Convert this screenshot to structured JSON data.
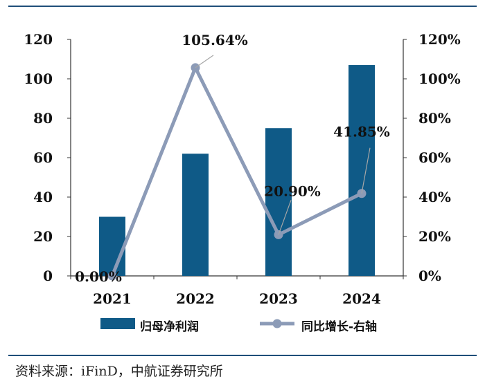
{
  "chart_data": {
    "type": "bar+line",
    "categories": [
      "2021",
      "2022",
      "2023",
      "2024"
    ],
    "series": [
      {
        "name": "归母净利润",
        "type": "bar",
        "axis": "left",
        "values": [
          30,
          62,
          75,
          107
        ],
        "color": "#0f5a87"
      },
      {
        "name": "同比增长-右轴",
        "type": "line",
        "axis": "right",
        "values": [
          0.0,
          105.64,
          20.9,
          41.85
        ],
        "labels": [
          "0.00%",
          "105.64%",
          "20.90%",
          "41.85%"
        ],
        "color": "#8c9bb7"
      }
    ],
    "y_left": {
      "min": 0,
      "max": 120,
      "ticks": [
        "0",
        "20",
        "40",
        "60",
        "80",
        "100",
        "120"
      ]
    },
    "y_right": {
      "min": 0,
      "max": 120,
      "ticks": [
        "0%",
        "20%",
        "40%",
        "60%",
        "80%",
        "100%",
        "120%"
      ]
    },
    "grid": false,
    "legend": "bottom"
  },
  "legend": {
    "bar_label": "归母净利润",
    "line_label": "同比增长-右轴"
  },
  "source": "资料来源：iFinD，中航证券研究所"
}
